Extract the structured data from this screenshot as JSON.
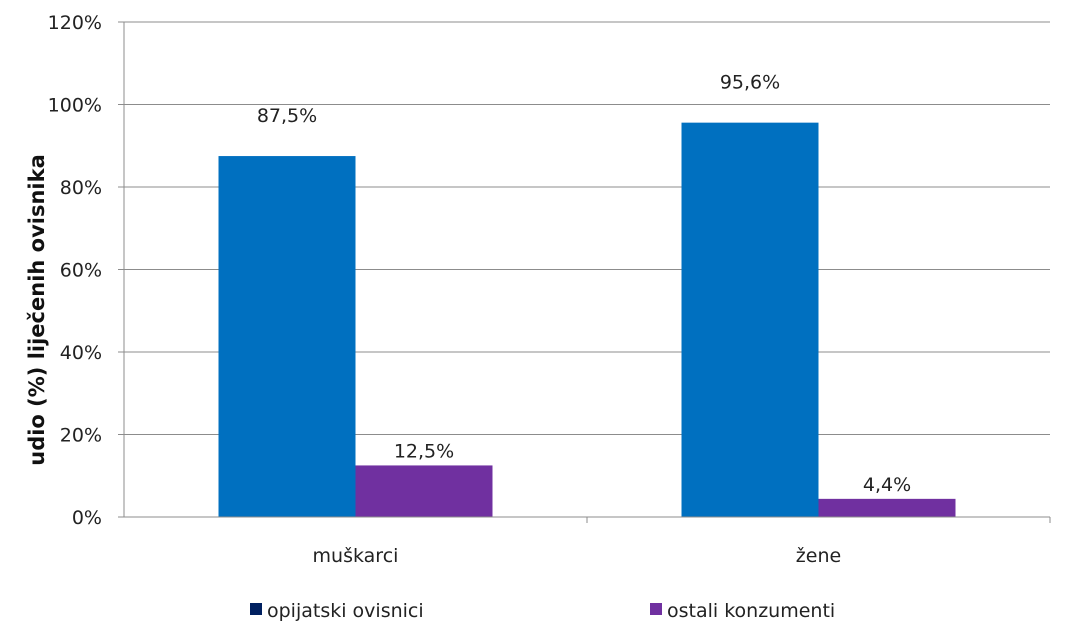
{
  "chart_data": {
    "type": "bar",
    "categories": [
      "muškarci",
      "žene"
    ],
    "series": [
      {
        "name": "opijatski ovisnici",
        "values": [
          87.5,
          95.6
        ],
        "labels": [
          "87,5%",
          "95,6%"
        ],
        "color": "#0070c0",
        "legend_color": "#002060"
      },
      {
        "name": "ostali konzumenti",
        "values": [
          12.5,
          4.4
        ],
        "labels": [
          "12,5%",
          "4,4%"
        ],
        "color": "#7030a0",
        "legend_color": "#7030a0"
      }
    ],
    "ylabel": "udio  (%) liječenih   ovisnika",
    "ylim": [
      0,
      120
    ],
    "yticks": [
      0,
      20,
      40,
      60,
      80,
      100,
      120
    ],
    "ytick_labels": [
      "0%",
      "20%",
      "40%",
      "60%",
      "80%",
      "100%",
      "120%"
    ],
    "grid": true,
    "legend_position": "bottom"
  }
}
